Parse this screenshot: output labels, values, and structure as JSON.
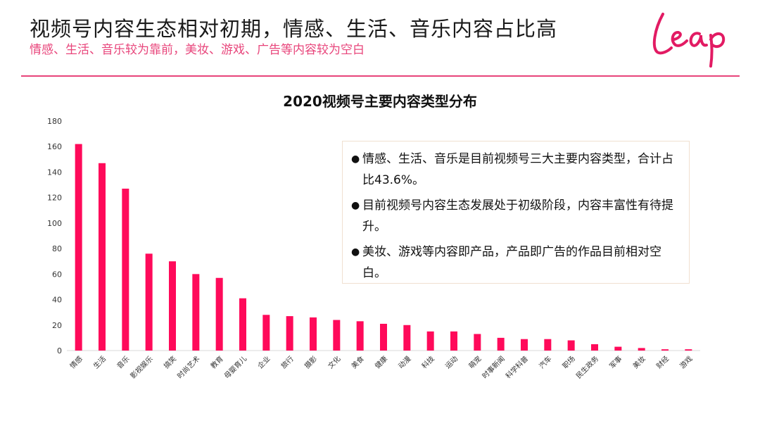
{
  "header": {
    "title": "视频号内容生态相对初期，情感、生活、音乐内容占比高",
    "subtitle": "情感、生活、音乐较为靠前，美妆、游戏、广告等内容较为空白",
    "logo_text": "Leap",
    "accent_color": "#e8457b"
  },
  "notes": [
    {
      "bullet": "●",
      "text": "情感、生活、音乐是目前视频号三大主要内容类型，合计占比43.6%。"
    },
    {
      "bullet": "●",
      "text": "目前视频号内容生态发展处于初级阶段，内容丰富性有待提升。"
    },
    {
      "bullet": "●",
      "text": "美妆、游戏等内容即产品，产品即广告的作品目前相对空白。"
    }
  ],
  "chart_data": {
    "type": "bar",
    "title": "2020视频号主要内容类型分布",
    "categories": [
      "情感",
      "生活",
      "音乐",
      "影视娱乐",
      "搞笑",
      "时尚艺术",
      "教育",
      "母婴育儿",
      "企业",
      "旅行",
      "摄影",
      "文化",
      "美食",
      "健康",
      "动漫",
      "科技",
      "运动",
      "萌宠",
      "时事新闻",
      "科学科普",
      "汽车",
      "职场",
      "民生政务",
      "军事",
      "美妆",
      "财经",
      "游戏"
    ],
    "values": [
      162,
      147,
      127,
      76,
      70,
      60,
      57,
      41,
      28,
      27,
      26,
      24,
      23,
      21,
      20,
      15,
      15,
      13,
      10,
      9,
      9,
      8,
      5,
      3,
      2,
      1,
      1
    ],
    "ylim": [
      0,
      180
    ],
    "yticks": [
      0,
      20,
      40,
      60,
      80,
      100,
      120,
      140,
      160,
      180
    ],
    "bar_color": "#ff0a5a",
    "grid": false
  }
}
